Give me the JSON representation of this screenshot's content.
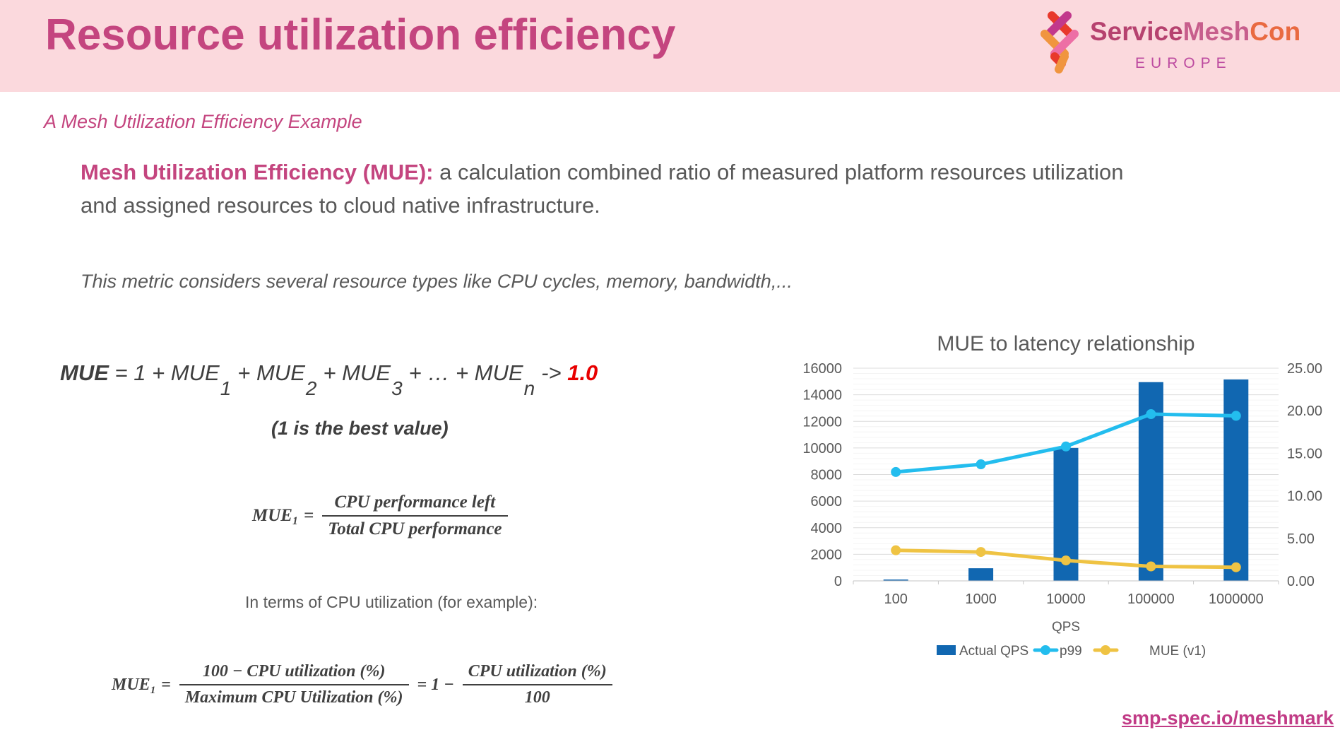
{
  "header": {
    "title": "Resource utilization efficiency",
    "logo": {
      "brand_service": "Service",
      "brand_mesh": "Mesh",
      "brand_con": "Con",
      "region": "EUROPE"
    }
  },
  "subtitle": "A Mesh Utilization Efficiency Example",
  "intro": {
    "lead_bold": "Mesh Utilization Efficiency (MUE):",
    "lead_rest": " a calculation combined ratio of measured platform resources utilization and assigned resources to cloud native infrastructure."
  },
  "note": "This metric considers several resource types like CPU cycles, memory, bandwidth,...",
  "formula_sum": {
    "lhs": "MUE",
    "eq": " = 1 + MUE",
    "sub1": "1",
    "plus2": "+ MUE",
    "sub2": "2",
    "plus3": "+ MUE",
    "sub3": "3",
    "plus_n": "+ … + MUE",
    "subn": "n",
    "arrow": "-> ",
    "target": "1.0"
  },
  "best_value": "(1 is the best value)",
  "formula_mue1": {
    "lhs": "MUE",
    "lhs_sub": "1",
    "eq": "=",
    "numerator": "CPU performance left",
    "denominator": "Total CPU performance"
  },
  "cpu_note": "In terms of CPU utilization (for example):",
  "formula_cpu": {
    "lhs": "MUE",
    "lhs_sub": "1",
    "eq": "=",
    "f1_num": "100 − CPU utilization (%)",
    "f1_den": "Maximum CPU Utilization (%)",
    "mid": "= 1 −",
    "f2_num": "CPU utilization (%)",
    "f2_den": "100"
  },
  "footer_link": "smp-spec.io/meshmark",
  "chart_data": {
    "type": "combo",
    "title": "MUE to latency relationship",
    "xlabel": "QPS",
    "categories": [
      "100",
      "1000",
      "10000",
      "100000",
      "1000000"
    ],
    "left_axis": {
      "min": 0,
      "max": 16000,
      "step": 2000,
      "ticks": [
        "16000",
        "14000",
        "12000",
        "10000",
        "8000",
        "6000",
        "4000",
        "2000",
        "0"
      ]
    },
    "right_axis": {
      "min": 0,
      "max": 25,
      "step": 5,
      "ticks": [
        "25.00",
        "20.00",
        "15.00",
        "10.00",
        "5.00",
        "0.00"
      ]
    },
    "grid": {
      "major": true,
      "minor_step_left": 400
    },
    "legend_position": "bottom",
    "series": [
      {
        "name": "Actual QPS",
        "type": "bar",
        "axis": "left",
        "color": "#1167b1",
        "values": [
          100,
          950,
          10000,
          14950,
          15150
        ]
      },
      {
        "name": "p99",
        "type": "line",
        "axis": "right",
        "color": "#23bdee",
        "values": [
          12.8,
          13.7,
          15.8,
          19.6,
          19.4
        ]
      },
      {
        "name": "MUE (v1)",
        "type": "line",
        "axis": "right",
        "color": "#efc343",
        "values": [
          3.6,
          3.4,
          2.4,
          1.7,
          1.6
        ]
      }
    ]
  },
  "colors": {
    "band": "#fbd9dd",
    "accent_pink": "#c4457f",
    "text_gray": "#595959",
    "formula_dark": "#3f3f3f",
    "target_red": "#e80000",
    "bar_blue": "#1167b1",
    "line_cyan": "#23bdee",
    "line_yellow": "#efc343"
  }
}
